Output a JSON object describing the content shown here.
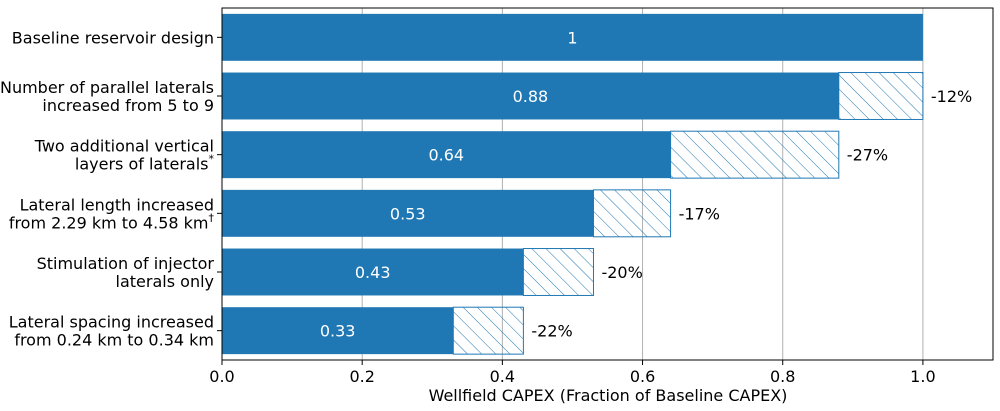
{
  "chart_data": {
    "type": "bar",
    "orientation": "horizontal",
    "categories": [
      [
        "Baseline reservoir design"
      ],
      [
        "Number of parallel laterals",
        "increased from 5 to 9"
      ],
      [
        "Two additional vertical",
        "layers of laterals*"
      ],
      [
        "Lateral length increased",
        "from 2.29 km to 4.58 km†"
      ],
      [
        "Stimulation of injector",
        "laterals only"
      ],
      [
        "Lateral spacing increased",
        "from 0.24 km to 0.34 km"
      ]
    ],
    "values": [
      1,
      0.88,
      0.64,
      0.53,
      0.43,
      0.33
    ],
    "value_labels": [
      "1",
      "0.88",
      "0.64",
      "0.53",
      "0.43",
      "0.33"
    ],
    "reductions": [
      {
        "from": 1.0,
        "to": 0.88,
        "label": "-12%"
      },
      {
        "from": 0.88,
        "to": 0.64,
        "label": "-27%"
      },
      {
        "from": 0.64,
        "to": 0.53,
        "label": "-17%"
      },
      {
        "from": 0.53,
        "to": 0.43,
        "label": "-20%"
      },
      {
        "from": 0.43,
        "to": 0.33,
        "label": "-22%"
      }
    ],
    "xlabel": "Wellfield CAPEX (Fraction of Baseline CAPEX)",
    "ylabel": "",
    "xlim": [
      0,
      1.1
    ],
    "xticks": [
      0,
      0.2,
      0.4,
      0.6,
      0.8,
      1.0
    ],
    "xtick_labels": [
      "0.0",
      "0.2",
      "0.4",
      "0.6",
      "0.8",
      "1.0"
    ],
    "grid": "vertical",
    "colors": {
      "bar": "#1f77b4",
      "hatch": "#1f77b4",
      "grid": "#b0b0b0",
      "axis": "#000000"
    }
  }
}
